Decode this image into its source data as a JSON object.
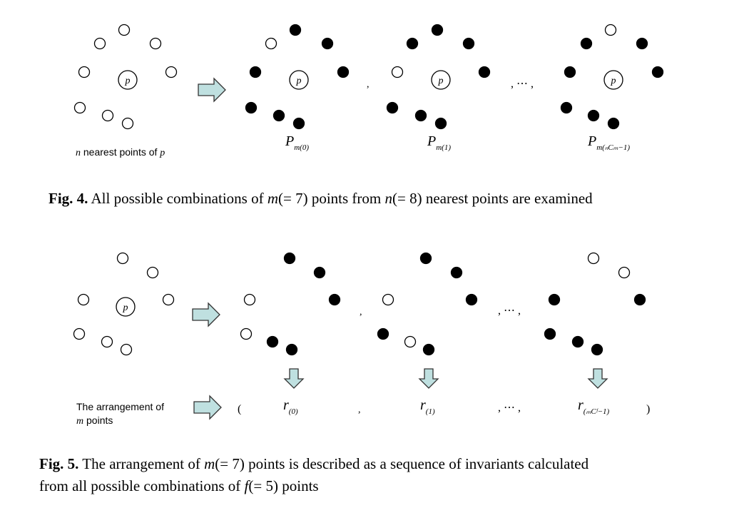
{
  "figure4": {
    "p_label": "p",
    "source_label_var": "n",
    "source_label_text": " nearest points of ",
    "source_label_var2": "p",
    "separator_comma": ",",
    "ellipsis": ", ⋯ ,",
    "subset_labels": [
      {
        "main": "P",
        "sub": "m(0)"
      },
      {
        "main": "P",
        "sub": "m(1)"
      },
      {
        "main": "P",
        "sub": "m(ₙCₘ−1)"
      }
    ],
    "caption": {
      "label": "Fig. 4.",
      "text_before": " All possible combinations of ",
      "m_expr": "m",
      "m_val": "(= 7)",
      "text_mid": " points from ",
      "n_expr": "n",
      "n_val": "(= 8)",
      "text_after": " nearest points are examined"
    }
  },
  "figure5": {
    "p_label": "p",
    "arrangement_line1": "The arrangement of",
    "arrangement_var": "m",
    "arrangement_line2": " points",
    "paren_open": "(",
    "paren_close": ")",
    "separator_comma": ",",
    "ellipsis": ", ⋯ ,",
    "invariant_labels": [
      {
        "main": "r",
        "sub": "(0)"
      },
      {
        "main": "r",
        "sub": "(1)"
      },
      {
        "main": "r",
        "sub": "(ₘCᶠ−1)"
      }
    ],
    "caption": {
      "label": "Fig. 5.",
      "text_before": " The arrangement of ",
      "m_expr": "m",
      "m_val": "(= 7)",
      "text_mid": " points is described as a sequence of invariants calculated",
      "line2_before": "from all possible combinations of ",
      "f_expr": "f",
      "f_val": "(= 5)",
      "line2_after": " points"
    }
  }
}
